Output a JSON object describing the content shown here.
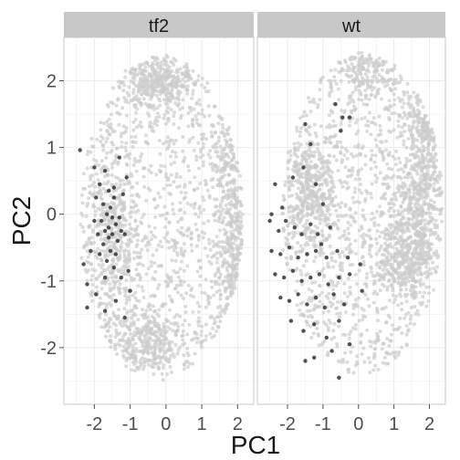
{
  "chart_data": {
    "type": "scatter",
    "xlabel": "PC1",
    "ylabel": "PC2",
    "xlim": [
      -2.85,
      2.45
    ],
    "ylim": [
      -2.85,
      2.65
    ],
    "x_ticks": [
      -2,
      -1,
      0,
      1,
      2
    ],
    "y_ticks": [
      -2,
      -1,
      0,
      1,
      2
    ],
    "x_tick_labels": [
      "-2",
      "-1",
      "0",
      "1",
      "2"
    ],
    "y_tick_labels": [
      "-2",
      "-1",
      "0",
      "1",
      "2"
    ],
    "grid": true,
    "facets": [
      "tf2",
      "wt"
    ],
    "colors": {
      "background_point": "#cccccc",
      "highlight_point": "#333333",
      "panel": "#ffffff",
      "grid": "#ebebeb",
      "strip": "#c8c8c8",
      "panel_border": "#c8c8c8"
    },
    "panels": [
      {
        "facet": "tf2",
        "highlight_points": [
          [
            -2.4,
            0.96
          ],
          [
            -2.0,
            0.7
          ],
          [
            -1.7,
            0.65
          ],
          [
            -1.3,
            0.85
          ],
          [
            -1.1,
            0.55
          ],
          [
            -1.95,
            0.25
          ],
          [
            -1.75,
            0.15
          ],
          [
            -1.6,
            0.35
          ],
          [
            -1.55,
            0.1
          ],
          [
            -1.45,
            0.25
          ],
          [
            -1.65,
            0.0
          ],
          [
            -1.5,
            -0.05
          ],
          [
            -1.8,
            -0.1
          ],
          [
            -1.4,
            -0.15
          ],
          [
            -1.7,
            -0.25
          ],
          [
            -1.6,
            -0.35
          ],
          [
            -1.5,
            -0.3
          ],
          [
            -1.35,
            -0.4
          ],
          [
            -1.75,
            -0.45
          ],
          [
            -1.55,
            -0.55
          ],
          [
            -1.4,
            -0.6
          ],
          [
            -1.9,
            -0.3
          ],
          [
            -2.0,
            -0.1
          ],
          [
            -1.3,
            -0.05
          ],
          [
            -1.25,
            -0.25
          ],
          [
            -1.85,
            -0.6
          ],
          [
            -1.65,
            -0.7
          ],
          [
            -1.45,
            -0.8
          ],
          [
            -2.3,
            -0.75
          ],
          [
            -2.2,
            -1.05
          ],
          [
            -1.95,
            -1.2
          ],
          [
            -1.7,
            -0.95
          ],
          [
            -1.25,
            -0.95
          ],
          [
            -1.05,
            -0.85
          ],
          [
            -1.0,
            -1.15
          ],
          [
            -2.2,
            -1.4
          ],
          [
            -1.7,
            -1.45
          ],
          [
            -1.4,
            -1.3
          ],
          [
            -1.15,
            -1.55
          ],
          [
            -1.6,
            -0.2
          ],
          [
            -1.45,
            0.4
          ],
          [
            -1.2,
            0.3
          ],
          [
            -1.85,
            0.45
          ],
          [
            -1.15,
            -0.3
          ],
          [
            -2.1,
            -0.55
          ]
        ]
      },
      {
        "facet": "wt",
        "highlight_points": [
          [
            -0.65,
            1.65
          ],
          [
            -0.45,
            1.45
          ],
          [
            -1.5,
            1.35
          ],
          [
            -0.25,
            1.45
          ],
          [
            -1.35,
            1.05
          ],
          [
            -0.5,
            1.25
          ],
          [
            -2.35,
            0.45
          ],
          [
            -2.15,
            0.1
          ],
          [
            -1.85,
            0.55
          ],
          [
            -1.55,
            0.7
          ],
          [
            -1.2,
            0.45
          ],
          [
            -1.0,
            0.15
          ],
          [
            -2.5,
            -0.1
          ],
          [
            -2.25,
            -0.25
          ],
          [
            -2.05,
            -0.1
          ],
          [
            -1.8,
            -0.2
          ],
          [
            -1.6,
            -0.3
          ],
          [
            -1.35,
            -0.15
          ],
          [
            -1.15,
            -0.3
          ],
          [
            -0.8,
            -0.2
          ],
          [
            -2.45,
            -0.55
          ],
          [
            -2.2,
            -0.6
          ],
          [
            -1.95,
            -0.5
          ],
          [
            -1.7,
            -0.65
          ],
          [
            -1.45,
            -0.6
          ],
          [
            -1.2,
            -0.55
          ],
          [
            -0.9,
            -0.65
          ],
          [
            -0.6,
            -0.55
          ],
          [
            -0.3,
            -0.65
          ],
          [
            -2.35,
            -0.9
          ],
          [
            -2.1,
            -0.95
          ],
          [
            -1.85,
            -0.85
          ],
          [
            -1.6,
            -1.0
          ],
          [
            -1.35,
            -0.95
          ],
          [
            -1.1,
            -0.9
          ],
          [
            -0.85,
            -1.05
          ],
          [
            -0.55,
            -0.95
          ],
          [
            -0.25,
            -0.9
          ],
          [
            0.05,
            -0.75
          ],
          [
            -2.2,
            -1.25
          ],
          [
            -1.95,
            -1.3
          ],
          [
            -1.7,
            -1.2
          ],
          [
            -1.45,
            -1.35
          ],
          [
            -1.2,
            -1.25
          ],
          [
            -0.95,
            -1.4
          ],
          [
            -0.7,
            -1.2
          ],
          [
            -0.4,
            -1.35
          ],
          [
            0.1,
            -1.15
          ],
          [
            -1.9,
            -1.6
          ],
          [
            -1.55,
            -1.75
          ],
          [
            -1.25,
            -1.65
          ],
          [
            -0.9,
            -1.85
          ],
          [
            -0.55,
            -1.6
          ],
          [
            -0.25,
            -1.95
          ],
          [
            -1.5,
            -2.2
          ],
          [
            -1.25,
            -2.15
          ],
          [
            -0.75,
            -2.05
          ],
          [
            -0.55,
            -2.45
          ],
          [
            -2.45,
            0.0
          ],
          [
            -1.05,
            -0.45
          ]
        ]
      }
    ]
  }
}
